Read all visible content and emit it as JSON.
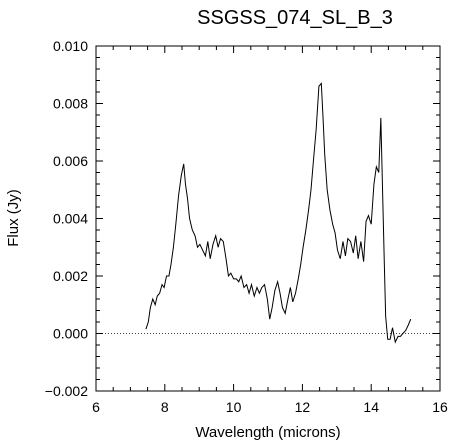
{
  "chart_data": {
    "type": "line",
    "title": "SSGSS_074_SL_B_3",
    "xlabel": "Wavelength (microns)",
    "ylabel": "Flux (Jy)",
    "xlim": [
      6,
      16
    ],
    "ylim": [
      -0.002,
      0.01
    ],
    "xticks": [
      6,
      8,
      10,
      12,
      14,
      16
    ],
    "xtick_labels": [
      "6",
      "8",
      "10",
      "12",
      "14",
      "16"
    ],
    "yticks": [
      -0.002,
      0.0,
      0.002,
      0.004,
      0.006,
      0.008,
      0.01
    ],
    "ytick_labels": [
      "−0.002",
      "0.000",
      "0.002",
      "0.004",
      "0.006",
      "0.008",
      "0.010"
    ],
    "reference_line": {
      "y": 0.0,
      "style": "dotted"
    },
    "series": [
      {
        "x": [
          7.45,
          7.52,
          7.58,
          7.65,
          7.72,
          7.78,
          7.85,
          7.92,
          7.98,
          8.05,
          8.12,
          8.18,
          8.25,
          8.32,
          8.4,
          8.48,
          8.55,
          8.6,
          8.66,
          8.72,
          8.8,
          8.88,
          8.95,
          9.02,
          9.1,
          9.18,
          9.25,
          9.32,
          9.4,
          9.48,
          9.55,
          9.62,
          9.7,
          9.78,
          9.85,
          9.92,
          10.0,
          10.08,
          10.15,
          10.22,
          10.3,
          10.38,
          10.45,
          10.52,
          10.6,
          10.68,
          10.75,
          10.82,
          10.9,
          10.98,
          11.05,
          11.12,
          11.2,
          11.28,
          11.35,
          11.42,
          11.5,
          11.58,
          11.65,
          11.72,
          11.8,
          11.88,
          11.95,
          12.02,
          12.1,
          12.18,
          12.25,
          12.32,
          12.4,
          12.48,
          12.55,
          12.6,
          12.65,
          12.72,
          12.8,
          12.88,
          12.95,
          13.02,
          13.1,
          13.18,
          13.25,
          13.32,
          13.4,
          13.48,
          13.55,
          13.62,
          13.7,
          13.78,
          13.85,
          13.92,
          14.0,
          14.08,
          14.15,
          14.22,
          14.28,
          14.33,
          14.38,
          14.42,
          14.48,
          14.55,
          14.62,
          14.7,
          14.78,
          14.85,
          14.92,
          15.0,
          15.08,
          15.15
        ],
        "y": [
          0.00015,
          0.0004,
          0.0009,
          0.0012,
          0.001,
          0.0013,
          0.0014,
          0.0017,
          0.0016,
          0.002,
          0.002,
          0.0024,
          0.003,
          0.0038,
          0.0048,
          0.0055,
          0.0059,
          0.0052,
          0.0047,
          0.004,
          0.0036,
          0.0034,
          0.003,
          0.0031,
          0.0029,
          0.0027,
          0.0032,
          0.0026,
          0.0031,
          0.0034,
          0.003,
          0.0033,
          0.0032,
          0.0026,
          0.002,
          0.0021,
          0.0019,
          0.0019,
          0.0018,
          0.002,
          0.0016,
          0.0017,
          0.0014,
          0.0017,
          0.0013,
          0.0016,
          0.0014,
          0.0016,
          0.0017,
          0.0012,
          0.0005,
          0.0009,
          0.0015,
          0.0018,
          0.0014,
          0.0009,
          0.0007,
          0.0012,
          0.0016,
          0.0011,
          0.0014,
          0.0019,
          0.0024,
          0.003,
          0.0036,
          0.0043,
          0.005,
          0.006,
          0.0071,
          0.0086,
          0.0087,
          0.0075,
          0.0062,
          0.005,
          0.0043,
          0.0038,
          0.0035,
          0.0029,
          0.0026,
          0.0032,
          0.0027,
          0.0033,
          0.0032,
          0.0028,
          0.0034,
          0.0026,
          0.0032,
          0.0025,
          0.0039,
          0.0041,
          0.0038,
          0.0052,
          0.0058,
          0.0056,
          0.0075,
          0.005,
          0.0025,
          0.0006,
          -0.0002,
          -0.0002,
          0.0002,
          -0.0003,
          -0.0001,
          -0.0001,
          0.0,
          0.0001,
          0.0003,
          0.0005
        ]
      }
    ]
  }
}
